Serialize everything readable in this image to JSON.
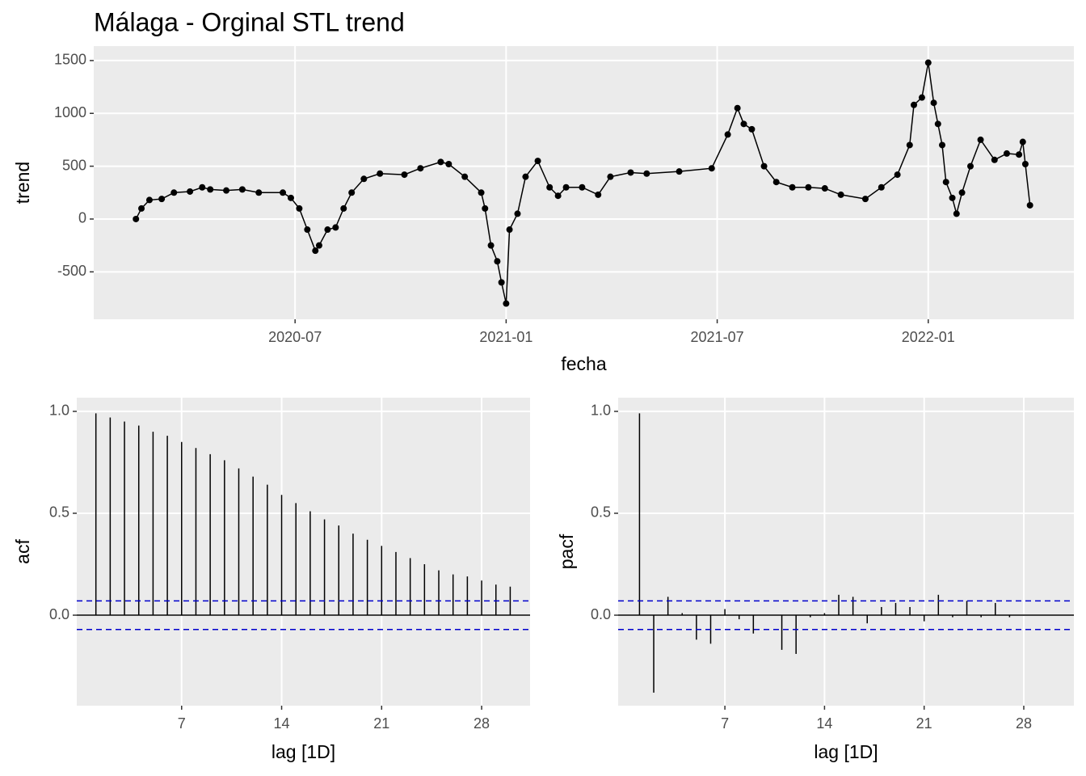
{
  "chart_data": [
    {
      "type": "line",
      "title": "Málaga - Orginal STL trend",
      "x_label": "fecha",
      "y_label": "trend",
      "markers": true,
      "color": "#000000",
      "grid": true,
      "x": [
        2020.123,
        2020.136,
        2020.155,
        2020.184,
        2020.213,
        2020.251,
        2020.28,
        2020.299,
        2020.337,
        2020.375,
        2020.414,
        2020.471,
        2020.49,
        2020.51,
        2020.529,
        2020.548,
        2020.557,
        2020.577,
        2020.596,
        2020.615,
        2020.634,
        2020.663,
        2020.701,
        2020.759,
        2020.797,
        2020.845,
        2020.864,
        2020.902,
        2020.941,
        2020.95,
        2020.964,
        2020.979,
        2020.989,
        2021.0,
        2021.008,
        2021.027,
        2021.046,
        2021.075,
        2021.103,
        2021.123,
        2021.142,
        2021.18,
        2021.218,
        2021.247,
        2021.295,
        2021.333,
        2021.41,
        2021.487,
        2021.525,
        2021.548,
        2021.563,
        2021.582,
        2021.611,
        2021.64,
        2021.678,
        2021.716,
        2021.755,
        2021.793,
        2021.851,
        2021.889,
        2021.927,
        2021.956,
        2021.966,
        2021.985,
        2022.0,
        2022.013,
        2022.023,
        2022.033,
        2022.042,
        2022.057,
        2022.067,
        2022.08,
        2022.1,
        2022.124,
        2022.157,
        2022.186,
        2022.215,
        2022.224,
        2022.23,
        2022.241
      ],
      "values": [
        0,
        100,
        180,
        190,
        250,
        260,
        300,
        280,
        270,
        280,
        250,
        250,
        200,
        100,
        -100,
        -300,
        -250,
        -100,
        -80,
        100,
        250,
        380,
        430,
        420,
        480,
        540,
        520,
        400,
        250,
        100,
        -250,
        -400,
        -600,
        -800,
        -100,
        50,
        400,
        550,
        300,
        220,
        300,
        300,
        230,
        400,
        440,
        430,
        450,
        480,
        800,
        1050,
        900,
        850,
        500,
        350,
        300,
        300,
        290,
        230,
        190,
        300,
        420,
        700,
        1080,
        1150,
        1480,
        1100,
        900,
        700,
        350,
        200,
        50,
        250,
        500,
        750,
        560,
        620,
        610,
        730,
        520,
        130
      ],
      "xlim": [
        2020.023,
        2022.345
      ],
      "xticks": [
        {
          "value": 2020.5,
          "label": "2020-07"
        },
        {
          "value": 2021,
          "label": "2021-01"
        },
        {
          "value": 2021.5,
          "label": "2021-07"
        },
        {
          "value": 2022,
          "label": "2022-01"
        }
      ],
      "ylim": [
        -949,
        1637
      ],
      "yticks": [
        -500,
        0,
        500,
        1000,
        1500
      ]
    },
    {
      "type": "stem",
      "x_label": "lag [1D]",
      "y_label": "acf",
      "color": "#000000",
      "bound_color": "#0000cc",
      "grid": true,
      "significance_bound": 0.07,
      "x": [
        1,
        2,
        3,
        4,
        5,
        6,
        7,
        8,
        9,
        10,
        11,
        12,
        13,
        14,
        15,
        16,
        17,
        18,
        19,
        20,
        21,
        22,
        23,
        24,
        25,
        26,
        27,
        28,
        29,
        30
      ],
      "values": [
        0.99,
        0.97,
        0.95,
        0.93,
        0.9,
        0.88,
        0.85,
        0.82,
        0.79,
        0.76,
        0.72,
        0.68,
        0.64,
        0.59,
        0.55,
        0.51,
        0.47,
        0.44,
        0.4,
        0.37,
        0.34,
        0.31,
        0.28,
        0.25,
        0.22,
        0.2,
        0.19,
        0.17,
        0.15,
        0.14
      ],
      "xlim": [
        -0.34,
        31.39
      ],
      "xticks": [
        7,
        14,
        21,
        28
      ],
      "ylim": [
        -0.444,
        1.067
      ],
      "yticks": [
        {
          "value": 0,
          "label": "0.0"
        },
        0.5,
        {
          "value": 1,
          "label": "1.0"
        }
      ]
    },
    {
      "type": "stem",
      "x_label": "lag [1D]",
      "y_label": "pacf",
      "color": "#000000",
      "bound_color": "#0000cc",
      "grid": true,
      "significance_bound": 0.07,
      "x": [
        1,
        2,
        3,
        4,
        5,
        6,
        7,
        8,
        9,
        10,
        11,
        12,
        13,
        14,
        15,
        16,
        17,
        18,
        19,
        20,
        21,
        22,
        23,
        24,
        25,
        26,
        27
      ],
      "values": [
        0.99,
        -0.38,
        0.09,
        0.01,
        -0.12,
        -0.14,
        0.03,
        -0.02,
        -0.09,
        0.0,
        -0.17,
        -0.19,
        -0.01,
        0.01,
        0.1,
        0.09,
        -0.04,
        0.04,
        0.06,
        0.04,
        -0.03,
        0.1,
        -0.01,
        0.07,
        -0.01,
        0.06,
        -0.01
      ],
      "xlim": [
        -0.5,
        31.52
      ],
      "xticks": [
        7,
        14,
        21,
        28
      ],
      "ylim": [
        -0.444,
        1.067
      ],
      "yticks": [
        {
          "value": 0,
          "label": "0.0"
        },
        0.5,
        {
          "value": 1,
          "label": "1.0"
        }
      ]
    }
  ]
}
